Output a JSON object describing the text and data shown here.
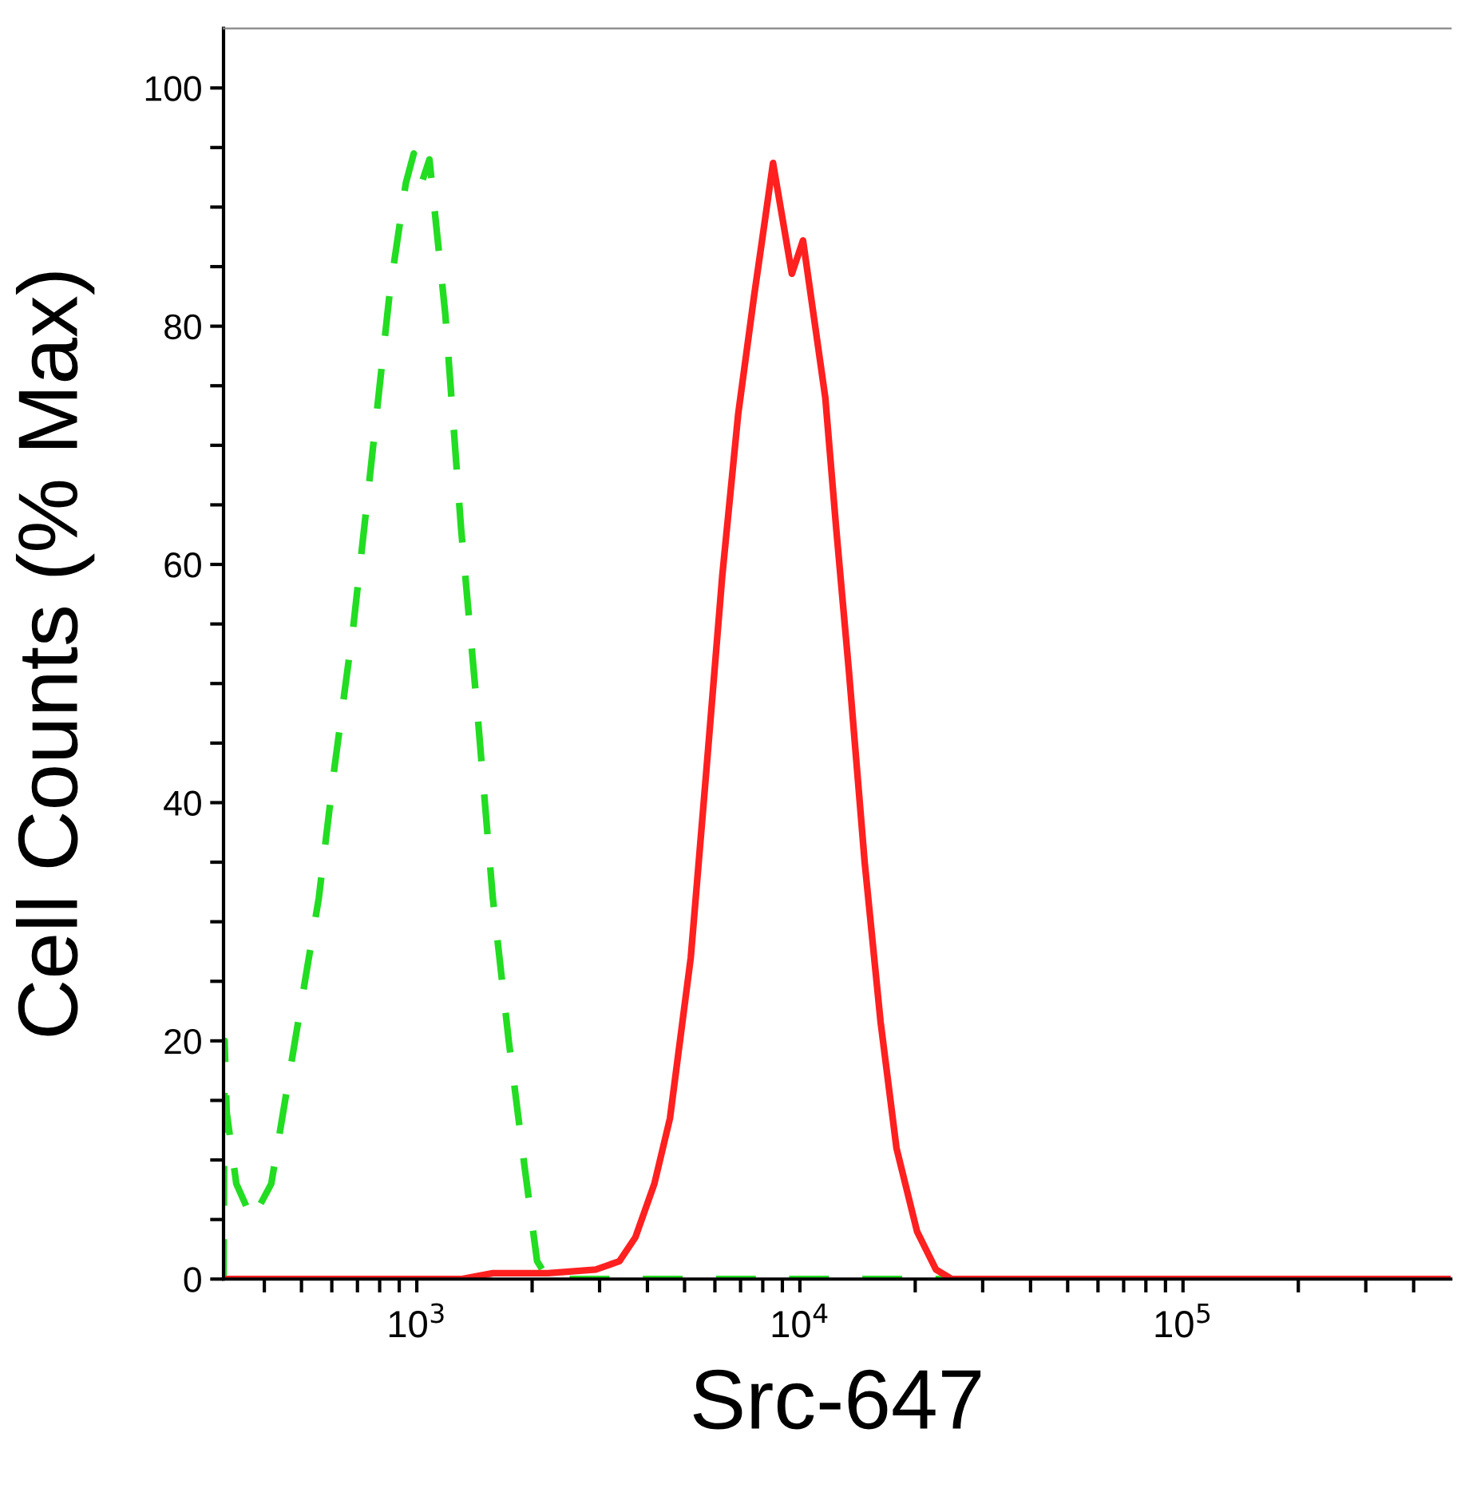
{
  "chart_data": {
    "type": "line",
    "xlabel": "Src-647",
    "ylabel": "Cell Counts (% Max)",
    "log": "x",
    "xlim": [
      313,
      500000
    ],
    "xticks": [
      {
        "value": 400,
        "label": null
      },
      {
        "value": 500,
        "label": null
      },
      {
        "value": 600,
        "label": null
      },
      {
        "value": 700,
        "label": null
      },
      {
        "value": 800,
        "label": null
      },
      {
        "value": 900,
        "label": null
      },
      {
        "value": 1000,
        "label": "10$^{3}$"
      },
      {
        "value": 2000,
        "label": null
      },
      {
        "value": 3000,
        "label": null
      },
      {
        "value": 4000,
        "label": null
      },
      {
        "value": 5000,
        "label": null
      },
      {
        "value": 6000,
        "label": null
      },
      {
        "value": 7000,
        "label": null
      },
      {
        "value": 8000,
        "label": null
      },
      {
        "value": 9000,
        "label": null
      },
      {
        "value": 10000,
        "label": "10$^{4}$"
      },
      {
        "value": 20000,
        "label": null
      },
      {
        "value": 30000,
        "label": null
      },
      {
        "value": 40000,
        "label": null
      },
      {
        "value": 50000,
        "label": null
      },
      {
        "value": 60000,
        "label": null
      },
      {
        "value": 70000,
        "label": null
      },
      {
        "value": 80000,
        "label": null
      },
      {
        "value": 90000,
        "label": null
      },
      {
        "value": 100000,
        "label": "10$^{5}$"
      },
      {
        "value": 200000,
        "label": null
      },
      {
        "value": 300000,
        "label": null
      },
      {
        "value": 400000,
        "label": null
      }
    ],
    "ylim": [
      0,
      105
    ],
    "yticks": [
      0,
      {
        "value": 5,
        "label": null
      },
      {
        "value": 10,
        "label": null
      },
      {
        "value": 15,
        "label": null
      },
      20,
      {
        "value": 25,
        "label": null
      },
      {
        "value": 30,
        "label": null
      },
      {
        "value": 35,
        "label": null
      },
      40,
      {
        "value": 45,
        "label": null
      },
      {
        "value": 50,
        "label": null
      },
      {
        "value": 55,
        "label": null
      },
      60,
      {
        "value": 65,
        "label": null
      },
      {
        "value": 70,
        "label": null
      },
      {
        "value": 75,
        "label": null
      },
      80,
      {
        "value": 85,
        "label": null
      },
      {
        "value": 90,
        "label": null
      },
      {
        "value": 95,
        "label": null
      },
      100
    ],
    "grid": false,
    "series": [
      {
        "color": "#22dd22",
        "line_style": "dashed",
        "x": [
          313,
          315,
          319,
          338,
          372,
          417,
          481,
          555,
          610,
          684,
          752,
          851,
          936,
          982,
          1029,
          1079,
          1187,
          1305,
          1436,
          1579,
          1738,
          1910,
          2061,
          2203,
          5000,
          50000,
          500000
        ],
        "values": [
          0,
          20,
          14,
          8,
          5,
          8,
          20,
          32,
          43,
          55,
          67,
          83,
          92,
          94.5,
          92,
          94,
          81,
          63,
          48,
          32,
          20,
          9.5,
          1.5,
          0,
          0,
          0,
          0
        ]
      },
      {
        "color": "#ff2020",
        "line_style": "solid",
        "x": [
          313,
          1305,
          1580,
          2200,
          2930,
          3380,
          3720,
          4170,
          4580,
          5190,
          5710,
          6270,
          6900,
          7590,
          7950,
          8510,
          9530,
          10190,
          11650,
          12440,
          13430,
          14760,
          16240,
          17870,
          20220,
          22660,
          24930,
          100000,
          500000
        ],
        "values": [
          0,
          0,
          0.5,
          0.5,
          0.8,
          1.5,
          3.5,
          8,
          13.5,
          27,
          43,
          59,
          72.6,
          82.5,
          87,
          93.7,
          84.4,
          87.2,
          74,
          63,
          51,
          35,
          21.6,
          11,
          4,
          0.8,
          0,
          0,
          0
        ]
      }
    ]
  }
}
